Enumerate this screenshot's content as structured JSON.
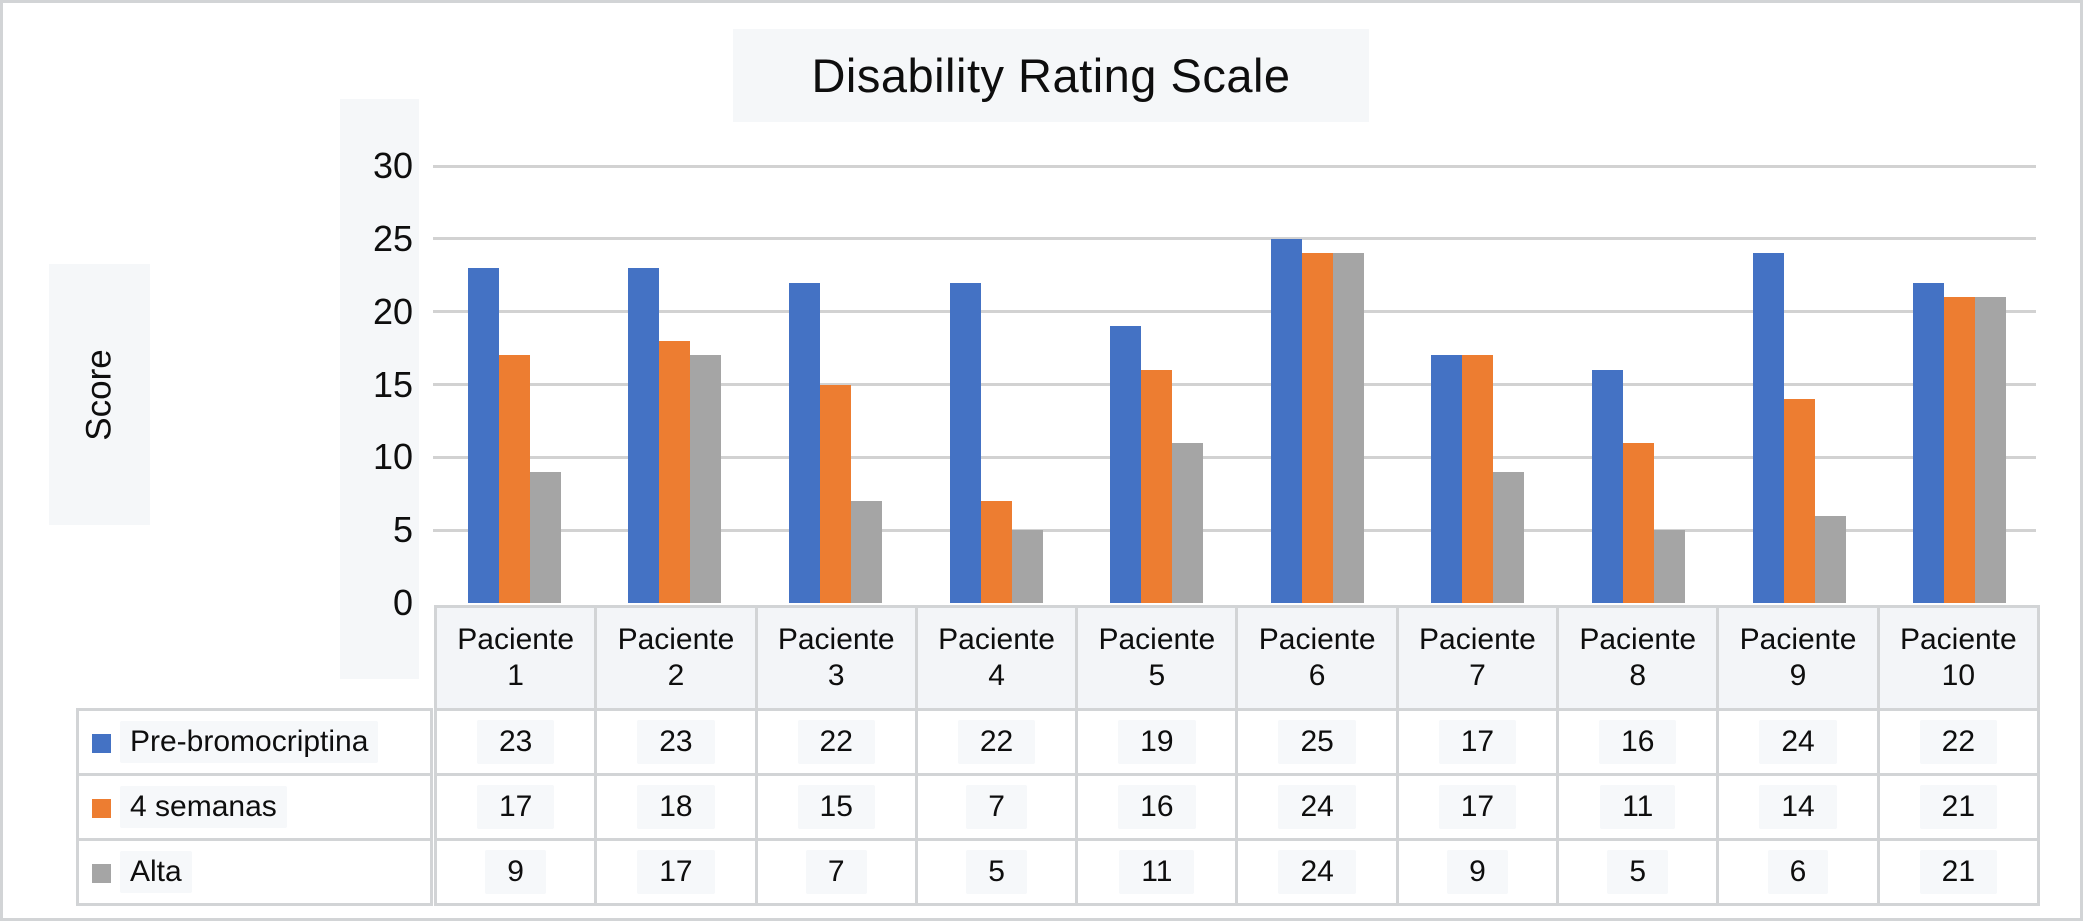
{
  "chart_data": {
    "type": "bar",
    "title": "Disability Rating Scale",
    "xlabel": "",
    "ylabel": "Score",
    "ylim": [
      0,
      30
    ],
    "yticks": [
      30,
      25,
      20,
      15,
      10,
      5,
      0
    ],
    "grid": true,
    "legend_position": "left-of-table-rows",
    "categories": [
      "Paciente 1",
      "Paciente 2",
      "Paciente 3",
      "Paciente 4",
      "Paciente 5",
      "Paciente 6",
      "Paciente 7",
      "Paciente 8",
      "Paciente 9",
      "Paciente 10"
    ],
    "series": [
      {
        "name": "Pre-bromocriptina",
        "color": "#4472C4",
        "values": [
          23,
          23,
          22,
          22,
          19,
          25,
          17,
          16,
          24,
          22
        ]
      },
      {
        "name": "4 semanas",
        "color": "#ED7D31",
        "values": [
          17,
          18,
          15,
          7,
          16,
          24,
          17,
          11,
          14,
          21
        ]
      },
      {
        "name": "Alta",
        "color": "#A5A5A5",
        "values": [
          9,
          17,
          7,
          5,
          11,
          24,
          9,
          5,
          6,
          21
        ]
      }
    ]
  },
  "colors": {
    "accent_blue": "#4472C4",
    "accent_orange": "#ED7D31",
    "accent_gray": "#A5A5A5",
    "gridline": "#D2D2D2",
    "table_border": "#D2D4D6",
    "highlight_bg": "#F5F7F9"
  }
}
